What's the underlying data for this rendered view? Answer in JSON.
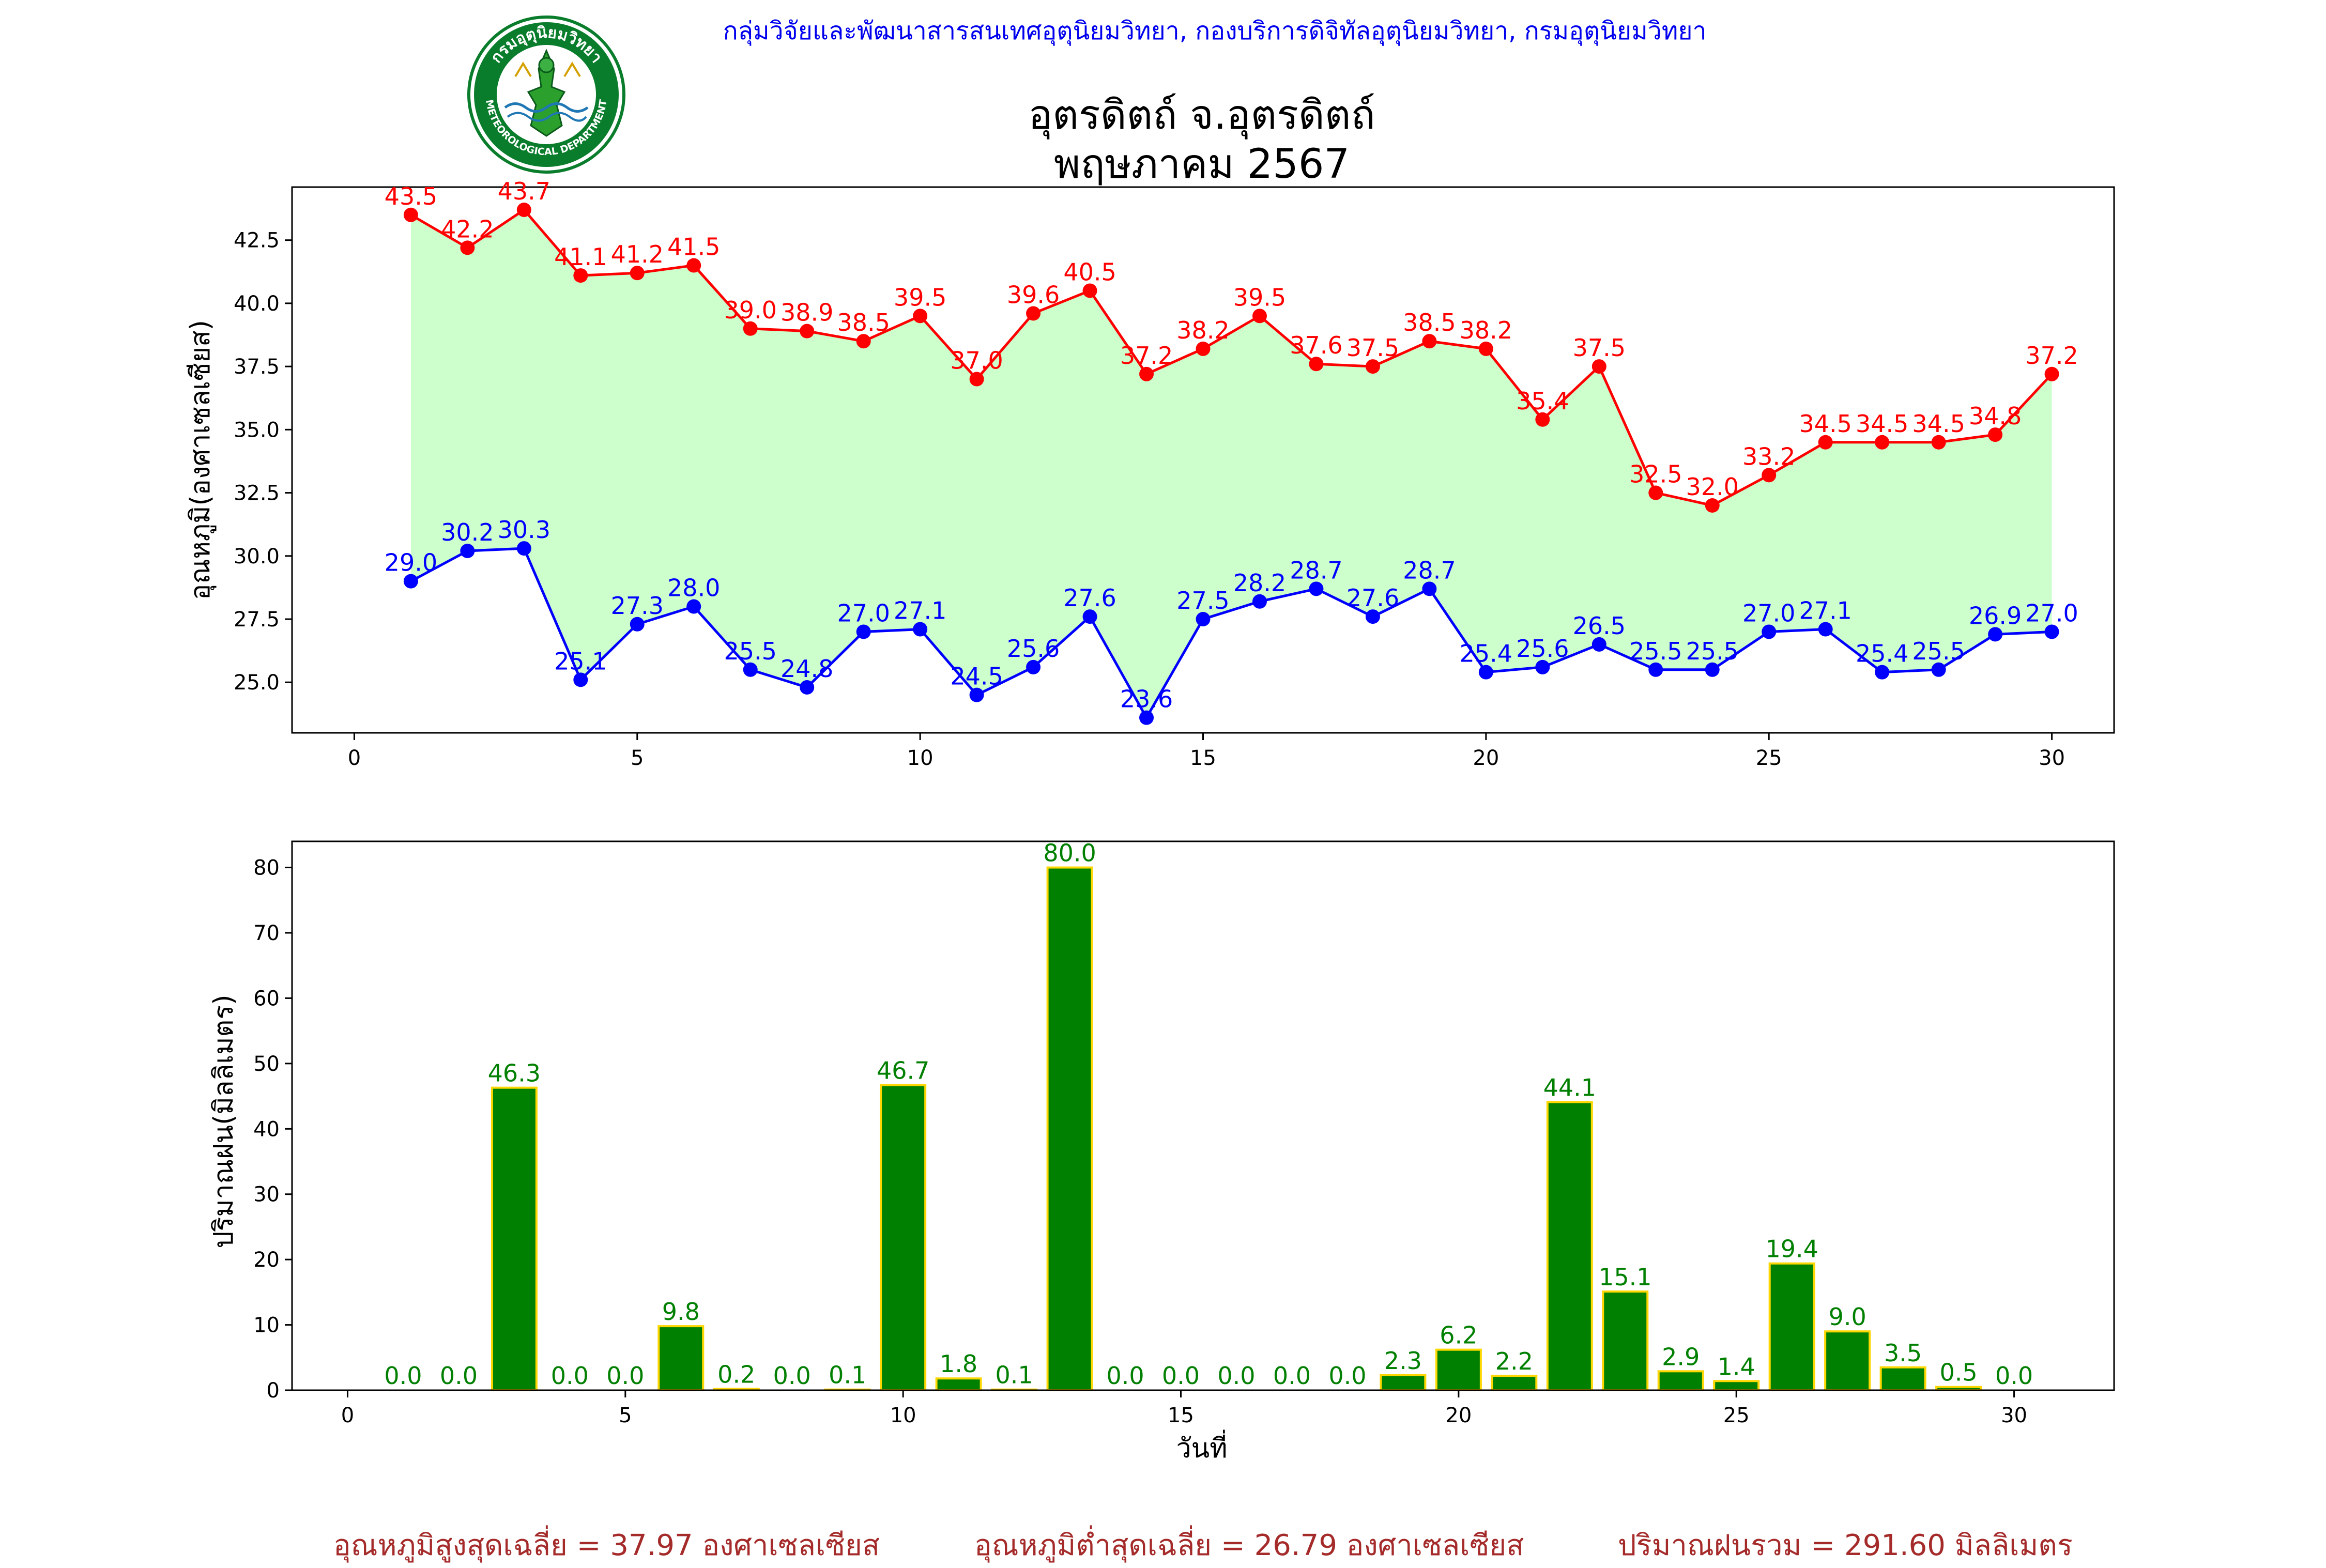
{
  "header": {
    "org_line": "กลุ่มวิจัยและพัฒนาสารสนเทศอุตุนิยมวิทยา, กองบริการดิจิทัลอุตุนิยมวิทยา, กรมอุตุนิยมวิทยา",
    "title_line1": "อุตรดิตถ์ จ.อุตรดิตถ์",
    "title_line2": "พฤษภาคม 2567",
    "logo_top_text": "กรมอุตุนิยมวิทยา",
    "logo_bottom_text": "METEOROLOGICAL DEPARTMENT"
  },
  "chart_data": [
    {
      "type": "line",
      "ylabel": "อุณหภูมิ(องศาเซลเซียส)",
      "xlabel": "",
      "xlim": [
        -1.1,
        31.1
      ],
      "ylim": [
        23.0,
        44.6
      ],
      "xticks": [
        0,
        5,
        10,
        15,
        20,
        25,
        30
      ],
      "yticks": [
        25.0,
        27.5,
        30.0,
        32.5,
        35.0,
        37.5,
        40.0,
        42.5
      ],
      "fill_between": true,
      "fill_color": "#ccffcc",
      "x": [
        1,
        2,
        3,
        4,
        5,
        6,
        7,
        8,
        9,
        10,
        11,
        12,
        13,
        14,
        15,
        16,
        17,
        18,
        19,
        20,
        21,
        22,
        23,
        24,
        25,
        26,
        27,
        28,
        29,
        30
      ],
      "series": [
        {
          "color": "#ff0000",
          "values": [
            43.5,
            42.2,
            43.7,
            41.1,
            41.2,
            41.5,
            39.0,
            38.9,
            38.5,
            39.5,
            37.0,
            39.6,
            40.5,
            37.2,
            38.2,
            39.5,
            37.6,
            37.5,
            38.5,
            38.2,
            35.4,
            37.5,
            32.5,
            32.0,
            33.2,
            34.5,
            34.5,
            34.5,
            34.8,
            37.2
          ]
        },
        {
          "color": "#0000ff",
          "values": [
            29.0,
            30.2,
            30.3,
            25.1,
            27.3,
            28.0,
            25.5,
            24.8,
            27.0,
            27.1,
            24.5,
            25.6,
            27.6,
            23.6,
            27.5,
            28.2,
            28.7,
            27.6,
            28.7,
            25.4,
            25.6,
            26.5,
            25.5,
            25.5,
            27.0,
            27.1,
            25.4,
            25.5,
            26.9,
            27.0
          ]
        }
      ]
    },
    {
      "type": "bar",
      "ylabel": "ปริมาณฝน(มิลลิเมตร)",
      "xlabel": "วันที่",
      "xlim": [
        -1.0,
        31.8
      ],
      "ylim": [
        0,
        84
      ],
      "xticks": [
        0,
        5,
        10,
        15,
        20,
        25,
        30
      ],
      "yticks": [
        0,
        10,
        20,
        30,
        40,
        50,
        60,
        70,
        80
      ],
      "bar_color": "#008000",
      "bar_edge_color": "#ffd700",
      "label_color": "#008000",
      "x": [
        1,
        2,
        3,
        4,
        5,
        6,
        7,
        8,
        9,
        10,
        11,
        12,
        13,
        14,
        15,
        16,
        17,
        18,
        19,
        20,
        21,
        22,
        23,
        24,
        25,
        26,
        27,
        28,
        29,
        30
      ],
      "values": [
        0.0,
        0.0,
        46.3,
        0.0,
        0.0,
        9.8,
        0.2,
        0.0,
        0.1,
        46.7,
        1.8,
        0.1,
        80.0,
        0.0,
        0.0,
        0.0,
        0.0,
        0.0,
        2.3,
        6.2,
        2.2,
        44.1,
        15.1,
        2.9,
        1.4,
        19.4,
        9.0,
        3.5,
        0.5,
        0.0
      ]
    }
  ],
  "footer": {
    "avg_max": "อุณหภูมิสูงสุดเฉลี่ย = 37.97 องศาเซลเซียส",
    "avg_min": "อุณหภูมิต่ำสุดเฉลี่ย = 26.79 องศาเซลเซียส",
    "total_rain": "ปริมาณฝนรวม = 291.60 มิลลิเมตร"
  },
  "colors": {
    "header": "#0000ee",
    "footer": "#a52a2a",
    "max_temp": "#ff0000",
    "min_temp": "#0000ff",
    "rain": "#008000"
  }
}
